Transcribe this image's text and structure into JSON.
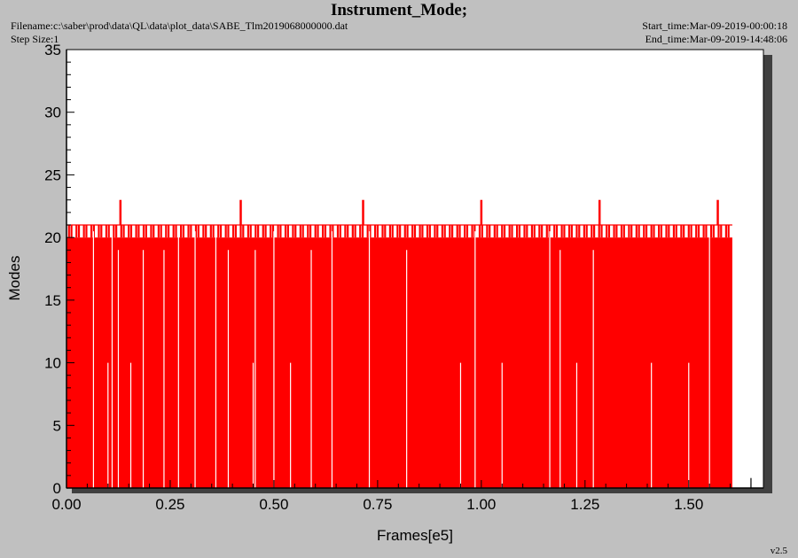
{
  "header": {
    "title": "Instrument_Mode;",
    "filename": "Filename:c:\\saber\\prod\\data\\QL\\data\\plot_data\\SABE_Tlm2019068000000.dat",
    "step_size": "Step Size:1",
    "start_time": "Start_time:Mar-09-2019-00:00:18",
    "end_time": "End_time:Mar-09-2019-14:48:06"
  },
  "footer": {
    "version": "v2.5"
  },
  "colors": {
    "series": "#ff0000",
    "background": "#c0c0c0",
    "plot_bg": "#ffffff"
  },
  "chart_data": {
    "type": "bar",
    "title": "Instrument_Mode;",
    "xlabel": "Frames[e5]",
    "ylabel": "Modes",
    "xlim": [
      0,
      1.68
    ],
    "ylim": [
      0,
      35
    ],
    "x_ticks": [
      "0.00",
      "0.25",
      "0.50",
      "0.75",
      "1.00",
      "1.25",
      "1.50"
    ],
    "x_tick_values": [
      0,
      0.25,
      0.5,
      0.75,
      1.0,
      1.25,
      1.5
    ],
    "y_ticks": [
      "0",
      "5",
      "10",
      "15",
      "20",
      "25",
      "30",
      "35"
    ],
    "y_tick_values": [
      0,
      5,
      10,
      15,
      20,
      25,
      30,
      35
    ],
    "grid": false,
    "series": [
      {
        "color": "#ff0000",
        "fill_extent": [
          0,
          1.605
        ],
        "fill_value": 21,
        "base_value": 20,
        "spikes": [
          {
            "x": 0.13,
            "y": 23
          },
          {
            "x": 0.42,
            "y": 23
          },
          {
            "x": 0.715,
            "y": 23
          },
          {
            "x": 1.0,
            "y": 23
          },
          {
            "x": 1.285,
            "y": 23
          },
          {
            "x": 1.57,
            "y": 23
          }
        ],
        "gaps_at_19": [
          0.125,
          0.185,
          0.235,
          0.39,
          0.455,
          0.59,
          0.82,
          1.19,
          1.27
        ],
        "gaps_at_10": [
          0.1,
          0.155,
          0.45,
          0.54,
          0.95,
          1.05,
          1.23,
          1.41,
          1.5
        ],
        "gaps_full": [
          0.065,
          0.11,
          0.27,
          0.31,
          0.36,
          0.5,
          0.64,
          0.73,
          0.985,
          1.165,
          1.55
        ],
        "outliers": [
          {
            "x": 1.65,
            "y": 0.8
          }
        ]
      }
    ]
  }
}
